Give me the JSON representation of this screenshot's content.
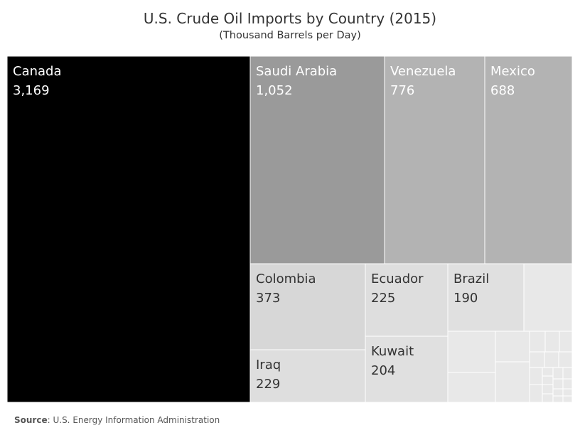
{
  "chart_data": {
    "type": "treemap",
    "title": "U.S. Crude Oil Imports by Country (2015)",
    "subtitle": "(Thousand Barrels per Day)",
    "items": [
      {
        "label": "Canada",
        "value": 3169,
        "value_text": "3,169",
        "color": "#000000",
        "text_color": "#ffffff"
      },
      {
        "label": "Saudi Arabia",
        "value": 1052,
        "value_text": "1,052",
        "color": "#9a9a9a",
        "text_color": "#ffffff"
      },
      {
        "label": "Venezuela",
        "value": 776,
        "value_text": "776",
        "color": "#b3b3b3",
        "text_color": "#ffffff"
      },
      {
        "label": "Mexico",
        "value": 688,
        "value_text": "688",
        "color": "#b3b3b3",
        "text_color": "#ffffff"
      },
      {
        "label": "Colombia",
        "value": 373,
        "value_text": "373",
        "color": "#d7d7d7",
        "text_color": "#333333"
      },
      {
        "label": "Ecuador",
        "value": 225,
        "value_text": "225",
        "color": "#dedede",
        "text_color": "#333333"
      },
      {
        "label": "Brazil",
        "value": 190,
        "value_text": "190",
        "color": "#e0e0e0",
        "text_color": "#333333"
      },
      {
        "label": "Iraq",
        "value": 229,
        "value_text": "229",
        "color": "#dedede",
        "text_color": "#333333"
      },
      {
        "label": "Kuwait",
        "value": 204,
        "value_text": "204",
        "color": "#e0e0e0",
        "text_color": "#333333"
      }
    ],
    "unlabeled_tile_color": "#e8e8e8",
    "border_color": "#ffffff"
  },
  "source": {
    "label": "Source",
    "text": "U.S. Energy Information Administration"
  }
}
